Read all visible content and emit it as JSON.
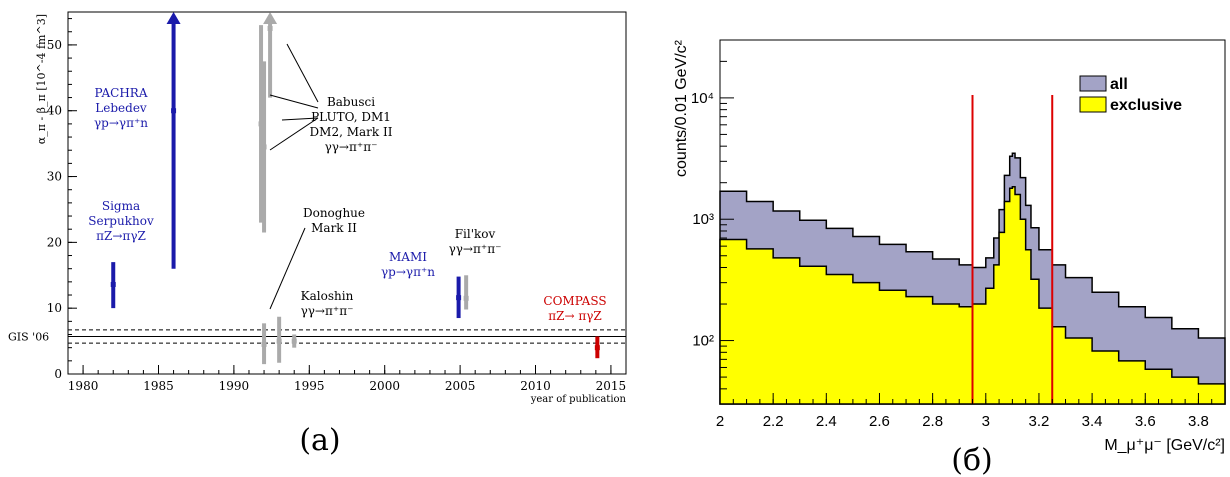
{
  "panel_labels": {
    "left": "(a)",
    "right": "(б)"
  },
  "chart_data": [
    {
      "type": "scatter",
      "ylabel": "α_π - β_π [10^-4 fm^3]",
      "xlabel": "year of publication",
      "xlim": [
        1979,
        2016
      ],
      "ylim": [
        0,
        55
      ],
      "xticks": [
        1980,
        1985,
        1990,
        1995,
        2000,
        2005,
        2010,
        2015
      ],
      "yticks": [
        0,
        10,
        20,
        30,
        40,
        50
      ],
      "reference_band": {
        "label": "GIS '06",
        "center": 5.7,
        "lower": 4.7,
        "upper": 6.7
      },
      "measurements": [
        {
          "group": "Sigma",
          "color": "#1a1aaa",
          "x": 1982,
          "y": 13.6,
          "low": 10.0,
          "high": 17.0
        },
        {
          "group": "PACHRA",
          "color": "#1a1aaa",
          "x": 1986,
          "y": 40.0,
          "low": 16.0,
          "high": 55.0,
          "arrow": true
        },
        {
          "group": "Babusci",
          "color": "#aaaaaa",
          "x": 1991.8,
          "y": 38.0,
          "low": 23.0,
          "high": 53.0
        },
        {
          "group": "Babusci",
          "color": "#aaaaaa",
          "x": 1992.0,
          "y": 34.5,
          "low": 21.5,
          "high": 47.5
        },
        {
          "group": "Babusci",
          "color": "#aaaaaa",
          "x": 1992.4,
          "y": 52.5,
          "low": 42.0,
          "high": 55.0,
          "arrow": true
        },
        {
          "group": "Donoghue",
          "color": "#aaaaaa",
          "x": 1992.0,
          "y": 4.5,
          "low": 1.5,
          "high": 7.7
        },
        {
          "group": "Donoghue",
          "color": "#aaaaaa",
          "x": 1993.0,
          "y": 5.0,
          "low": 1.7,
          "high": 8.7
        },
        {
          "group": "Kaloshin",
          "color": "#aaaaaa",
          "x": 1994.0,
          "y": 5.0,
          "low": 4.0,
          "high": 6.0
        },
        {
          "group": "MAMI",
          "color": "#1a1aaa",
          "x": 2004.9,
          "y": 11.6,
          "low": 8.5,
          "high": 14.8
        },
        {
          "group": "Fil'kov",
          "color": "#aaaaaa",
          "x": 2005.4,
          "y": 11.5,
          "low": 9.8,
          "high": 15.0
        },
        {
          "group": "COMPASS",
          "color": "#cc0000",
          "x": 2014.1,
          "y": 4.0,
          "low": 2.4,
          "high": 5.7
        }
      ],
      "annotations": [
        {
          "group": "PACHRA",
          "color": "#1a1aaa",
          "lines": [
            "PACHRA",
            "Lebedev",
            "γp→γπ⁺n"
          ]
        },
        {
          "group": "Sigma",
          "color": "#1a1aaa",
          "lines": [
            "Sigma",
            "Serpukhov",
            "πZ→πγZ"
          ]
        },
        {
          "group": "Babusci",
          "color": "#000000",
          "lines": [
            "Babusci",
            "PLUTO, DM1",
            "DM2, Mark II",
            "γγ→π⁺π⁻"
          ]
        },
        {
          "group": "Donoghue",
          "color": "#000000",
          "lines": [
            "Donoghue",
            "Mark II"
          ]
        },
        {
          "group": "Kaloshin",
          "color": "#000000",
          "lines": [
            "Kaloshin",
            "γγ→π⁺π⁻"
          ]
        },
        {
          "group": "MAMI",
          "color": "#1a1aaa",
          "lines": [
            "MAMI",
            "γp→γπ⁺n"
          ]
        },
        {
          "group": "Fil'kov",
          "color": "#000000",
          "lines": [
            "Fil'kov",
            "γγ→π⁺π⁻"
          ]
        },
        {
          "group": "COMPASS",
          "color": "#cc0000",
          "lines": [
            "COMPASS",
            "πZ→ πγZ"
          ]
        }
      ]
    },
    {
      "type": "area",
      "ylabel": "counts/0.01 GeV/c²",
      "xlabel": "M_μ⁺μ⁻ [GeV/c²]",
      "xlim": [
        2.0,
        3.9
      ],
      "ylim": [
        30,
        30000
      ],
      "yscale": "log",
      "xticks": [
        "2",
        "2.2",
        "2.4",
        "2.6",
        "2.8",
        "3",
        "3.2",
        "3.4",
        "3.6",
        "3.8"
      ],
      "yticks": [
        "10²",
        "10³",
        "10⁴"
      ],
      "cut_lines": [
        2.95,
        3.25
      ],
      "cut_color": "#dd0000",
      "legend_position": "top-right",
      "series": [
        {
          "name": "all",
          "color": "#a3a3c6",
          "x": [
            2.0,
            2.1,
            2.2,
            2.3,
            2.4,
            2.5,
            2.6,
            2.7,
            2.8,
            2.9,
            2.95,
            3.0,
            3.03,
            3.05,
            3.07,
            3.09,
            3.1,
            3.11,
            3.13,
            3.15,
            3.17,
            3.2,
            3.25,
            3.3,
            3.4,
            3.5,
            3.6,
            3.7,
            3.8,
            3.9
          ],
          "values": [
            1700,
            1400,
            1170,
            980,
            840,
            720,
            620,
            540,
            470,
            420,
            400,
            480,
            700,
            1200,
            2300,
            3300,
            3500,
            3200,
            2200,
            1300,
            850,
            560,
            420,
            330,
            250,
            190,
            155,
            125,
            105,
            90
          ]
        },
        {
          "name": "exclusive",
          "color": "#ffff00",
          "x": [
            2.0,
            2.1,
            2.2,
            2.3,
            2.4,
            2.5,
            2.6,
            2.7,
            2.8,
            2.9,
            2.95,
            3.0,
            3.03,
            3.05,
            3.07,
            3.09,
            3.1,
            3.11,
            3.13,
            3.15,
            3.17,
            3.2,
            3.25,
            3.3,
            3.4,
            3.5,
            3.6,
            3.7,
            3.8,
            3.9
          ],
          "values": [
            680,
            570,
            480,
            410,
            350,
            300,
            260,
            230,
            200,
            190,
            200,
            270,
            420,
            780,
            1400,
            1800,
            1850,
            1600,
            1000,
            560,
            320,
            185,
            130,
            105,
            82,
            68,
            58,
            50,
            44,
            38
          ]
        }
      ]
    }
  ]
}
